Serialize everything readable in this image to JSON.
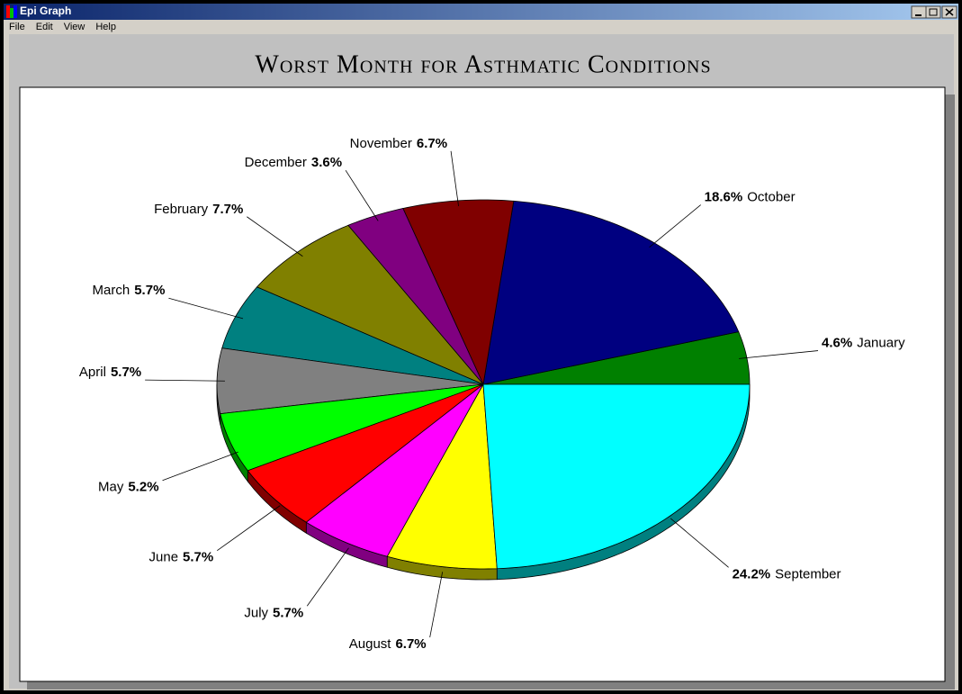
{
  "window": {
    "title": "Epi Graph",
    "menu": [
      "File",
      "Edit",
      "View",
      "Help"
    ]
  },
  "chart_data": {
    "type": "pie",
    "title": "Worst Month for Asthmatic Conditions",
    "categories": [
      "January",
      "October",
      "November",
      "December",
      "February",
      "March",
      "April",
      "May",
      "June",
      "July",
      "August",
      "September"
    ],
    "values": [
      4.6,
      18.6,
      6.7,
      3.6,
      7.7,
      5.7,
      5.7,
      5.2,
      5.7,
      5.7,
      6.7,
      24.2
    ],
    "value_labels": [
      "4.6%",
      "18.6%",
      "6.7%",
      "3.6%",
      "7.7%",
      "5.7%",
      "5.7%",
      "5.2%",
      "5.7%",
      "5.7%",
      "6.7%",
      "24.2%"
    ],
    "colors": [
      "#008000",
      "#000080",
      "#800000",
      "#800080",
      "#808000",
      "#008080",
      "#808080",
      "#00ff00",
      "#ff0000",
      "#ff00ff",
      "#ffff00",
      "#00ffff"
    ]
  }
}
